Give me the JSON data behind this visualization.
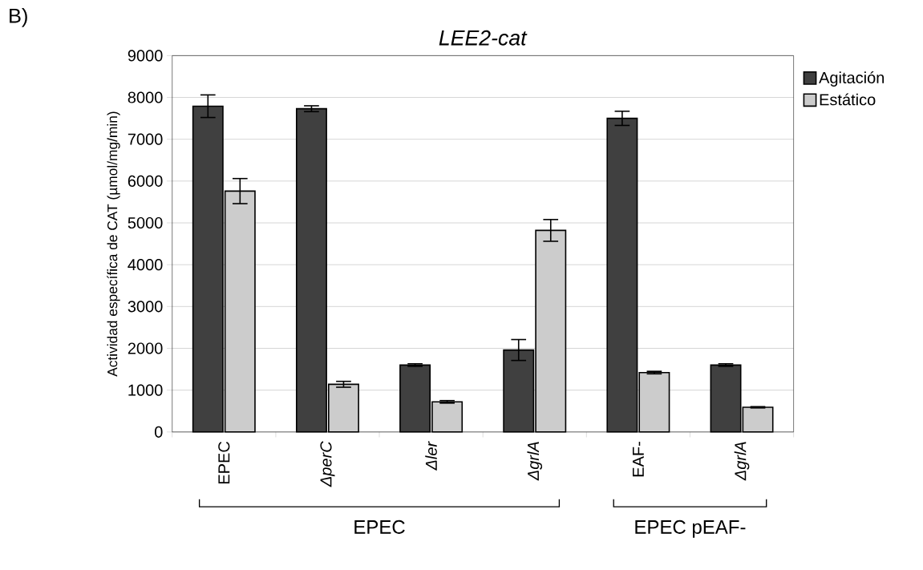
{
  "chart_data": {
    "type": "bar",
    "title": "*LEE2-cat*",
    "ylabel": "Actividad específica de CAT (µmol/mg/min)",
    "categories": [
      "EPEC",
      "*ΔperC*",
      "*Δler*",
      "*ΔgrlA*",
      "EAF-",
      "*ΔgrlA*"
    ],
    "series": [
      {
        "name": "Agitación",
        "color": "#404040",
        "values": [
          7790,
          7730,
          1600,
          1960,
          7500,
          1600
        ],
        "errors": [
          270,
          70,
          30,
          250,
          170,
          30
        ]
      },
      {
        "name": "Estático",
        "color": "#cccccc",
        "values": [
          5760,
          1140,
          720,
          4820,
          1420,
          590
        ],
        "errors": [
          300,
          70,
          30,
          260,
          30,
          15
        ]
      }
    ],
    "ylim": [
      0,
      9000
    ],
    "yticks": [
      0,
      1000,
      2000,
      3000,
      4000,
      5000,
      6000,
      7000,
      8000,
      9000
    ],
    "grid": "y",
    "legend": "top right",
    "annotations": [
      "B)",
      "EPEC",
      "EPEC pEAF-"
    ]
  }
}
